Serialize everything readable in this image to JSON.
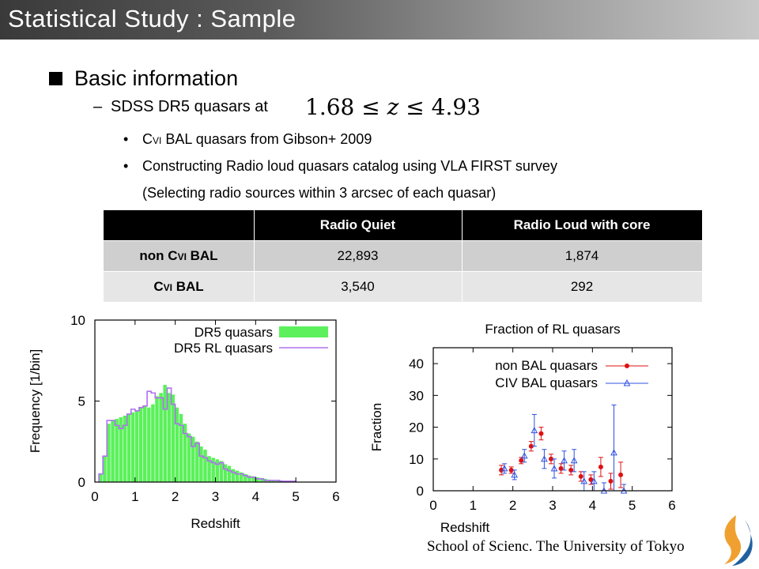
{
  "title": "Statistical Study : Sample",
  "bullets": {
    "level1": "Basic information",
    "level2_dash": "–",
    "level2": "SDSS DR5 quasars at",
    "math": {
      "lo": "1.68",
      "le": "≤",
      "var": "z",
      "hi": "4.93"
    },
    "level3": [
      {
        "dot": "•",
        "prefix": "C",
        "suffix_small": "VI",
        "text": " BAL quasars from Gibson+ 2009"
      },
      {
        "dot": "•",
        "text": "Constructing Radio loud quasars catalog using VLA FIRST survey"
      },
      {
        "text": "(Selecting radio sources within 3 arcsec  of each quasar)"
      }
    ]
  },
  "table": {
    "headers": [
      "",
      "Radio Quiet",
      "Radio Loud with core"
    ],
    "rows": [
      {
        "label_prefix": "non C",
        "label_small": "VI",
        "label_suffix": " BAL",
        "values": [
          "22,893",
          "1,874"
        ]
      },
      {
        "label_prefix": "C",
        "label_small": "VI",
        "label_suffix": " BAL",
        "values": [
          "3,540",
          "292"
        ]
      }
    ]
  },
  "chart_data": [
    {
      "type": "bar",
      "xlabel": "Redshift",
      "ylabel": "Frequency [1/bin]",
      "xlim": [
        0,
        6
      ],
      "ylim": [
        0,
        10
      ],
      "xticks": [
        "0",
        "1",
        "2",
        "3",
        "4",
        "5",
        "6"
      ],
      "yticks": [
        "0",
        "5",
        "10"
      ],
      "legend": {
        "placement": "top-right",
        "entries": [
          "DR5 quasars",
          "DR5 RL quasars"
        ]
      },
      "colors": {
        "DR5 quasars": "#5cf05c",
        "DR5 RL quasars": "#b070f0"
      },
      "bin_width": 0.1,
      "x_start": 0.1,
      "series": [
        {
          "name": "DR5 quasars",
          "values": [
            0.5,
            1.6,
            3.6,
            3.8,
            3.9,
            4.0,
            4.1,
            4.2,
            4.3,
            4.4,
            4.6,
            4.7,
            4.6,
            4.8,
            5.3,
            5.5,
            6.0,
            5.5,
            5.4,
            4.6,
            4.2,
            3.6,
            3.0,
            2.8,
            2.5,
            2.2,
            2.0,
            1.6,
            1.5,
            1.4,
            1.3,
            1.1,
            1.0,
            0.8,
            0.7,
            0.6,
            0.5,
            0.4,
            0.35,
            0.3,
            0.25,
            0.2,
            0.15,
            0.1,
            0.1,
            0.1,
            0.05,
            0.05,
            0.05
          ]
        },
        {
          "name": "DR5 RL quasars",
          "values": [
            0.5,
            1.6,
            3.8,
            3.8,
            3.5,
            3.3,
            3.5,
            4.2,
            4.5,
            4.4,
            4.6,
            4.7,
            5.6,
            5.5,
            5.2,
            5.2,
            4.5,
            5.8,
            4.8,
            3.6,
            3.5,
            3.0,
            2.8,
            2.2,
            2.4,
            1.6,
            1.5,
            1.3,
            1.2,
            1.1,
            1.2,
            0.8,
            0.7,
            0.6,
            0.5,
            0.5,
            0.4,
            0.3,
            0.3,
            0.2,
            0.2,
            0.1,
            0.1,
            0.1,
            0.1,
            0.05,
            0.05,
            0.05,
            0.05
          ]
        }
      ]
    },
    {
      "type": "scatter",
      "title": "Fraction of RL quasars",
      "xlabel": "Redshift",
      "ylabel": "Fraction",
      "xlim": [
        0,
        6
      ],
      "ylim": [
        0,
        45
      ],
      "xticks": [
        "0",
        "1",
        "2",
        "3",
        "4",
        "5",
        "6"
      ],
      "yticks": [
        "0",
        "10",
        "20",
        "30",
        "40"
      ],
      "legend": {
        "placement": "top-right",
        "entries": [
          "non BAL quasars",
          "CIV BAL quasars"
        ]
      },
      "colors": {
        "non BAL quasars": "#e01010",
        "CIV BAL quasars": "#3050e0"
      },
      "series": [
        {
          "name": "non BAL quasars",
          "points": [
            [
              1.75,
              6.5,
              1.5
            ],
            [
              2.0,
              6.5,
              1.0
            ],
            [
              2.25,
              9.5,
              1.0
            ],
            [
              2.5,
              14,
              1.5
            ],
            [
              2.75,
              18,
              2.0
            ],
            [
              3.0,
              10,
              1.5
            ],
            [
              3.25,
              7,
              1.5
            ],
            [
              3.5,
              6.5,
              1.5
            ],
            [
              3.75,
              4.5,
              1.5
            ],
            [
              4.0,
              3.5,
              1.5
            ],
            [
              4.25,
              7.5,
              3.0
            ],
            [
              4.5,
              3,
              2.5
            ],
            [
              4.75,
              5,
              4.0
            ]
          ]
        },
        {
          "name": "CIV BAL quasars",
          "points": [
            [
              1.75,
              7,
              1.5
            ],
            [
              2.0,
              5,
              1.5
            ],
            [
              2.25,
              11,
              2.0
            ],
            [
              2.5,
              19,
              5.0
            ],
            [
              2.75,
              10,
              3.0
            ],
            [
              3.0,
              7,
              3.0
            ],
            [
              3.25,
              9.5,
              3.0
            ],
            [
              3.5,
              9.5,
              3.5
            ],
            [
              3.75,
              3,
              3.0
            ],
            [
              4.0,
              3,
              3.0
            ],
            [
              4.25,
              0,
              2.5
            ],
            [
              4.5,
              12,
              15.0
            ],
            [
              4.75,
              0,
              2.0
            ]
          ]
        }
      ]
    }
  ],
  "footer": "School of Scienc. The University of Tokyo",
  "logo": {
    "name": "university-logo-icon",
    "colors": [
      "#f0a030",
      "#2060a0"
    ]
  }
}
